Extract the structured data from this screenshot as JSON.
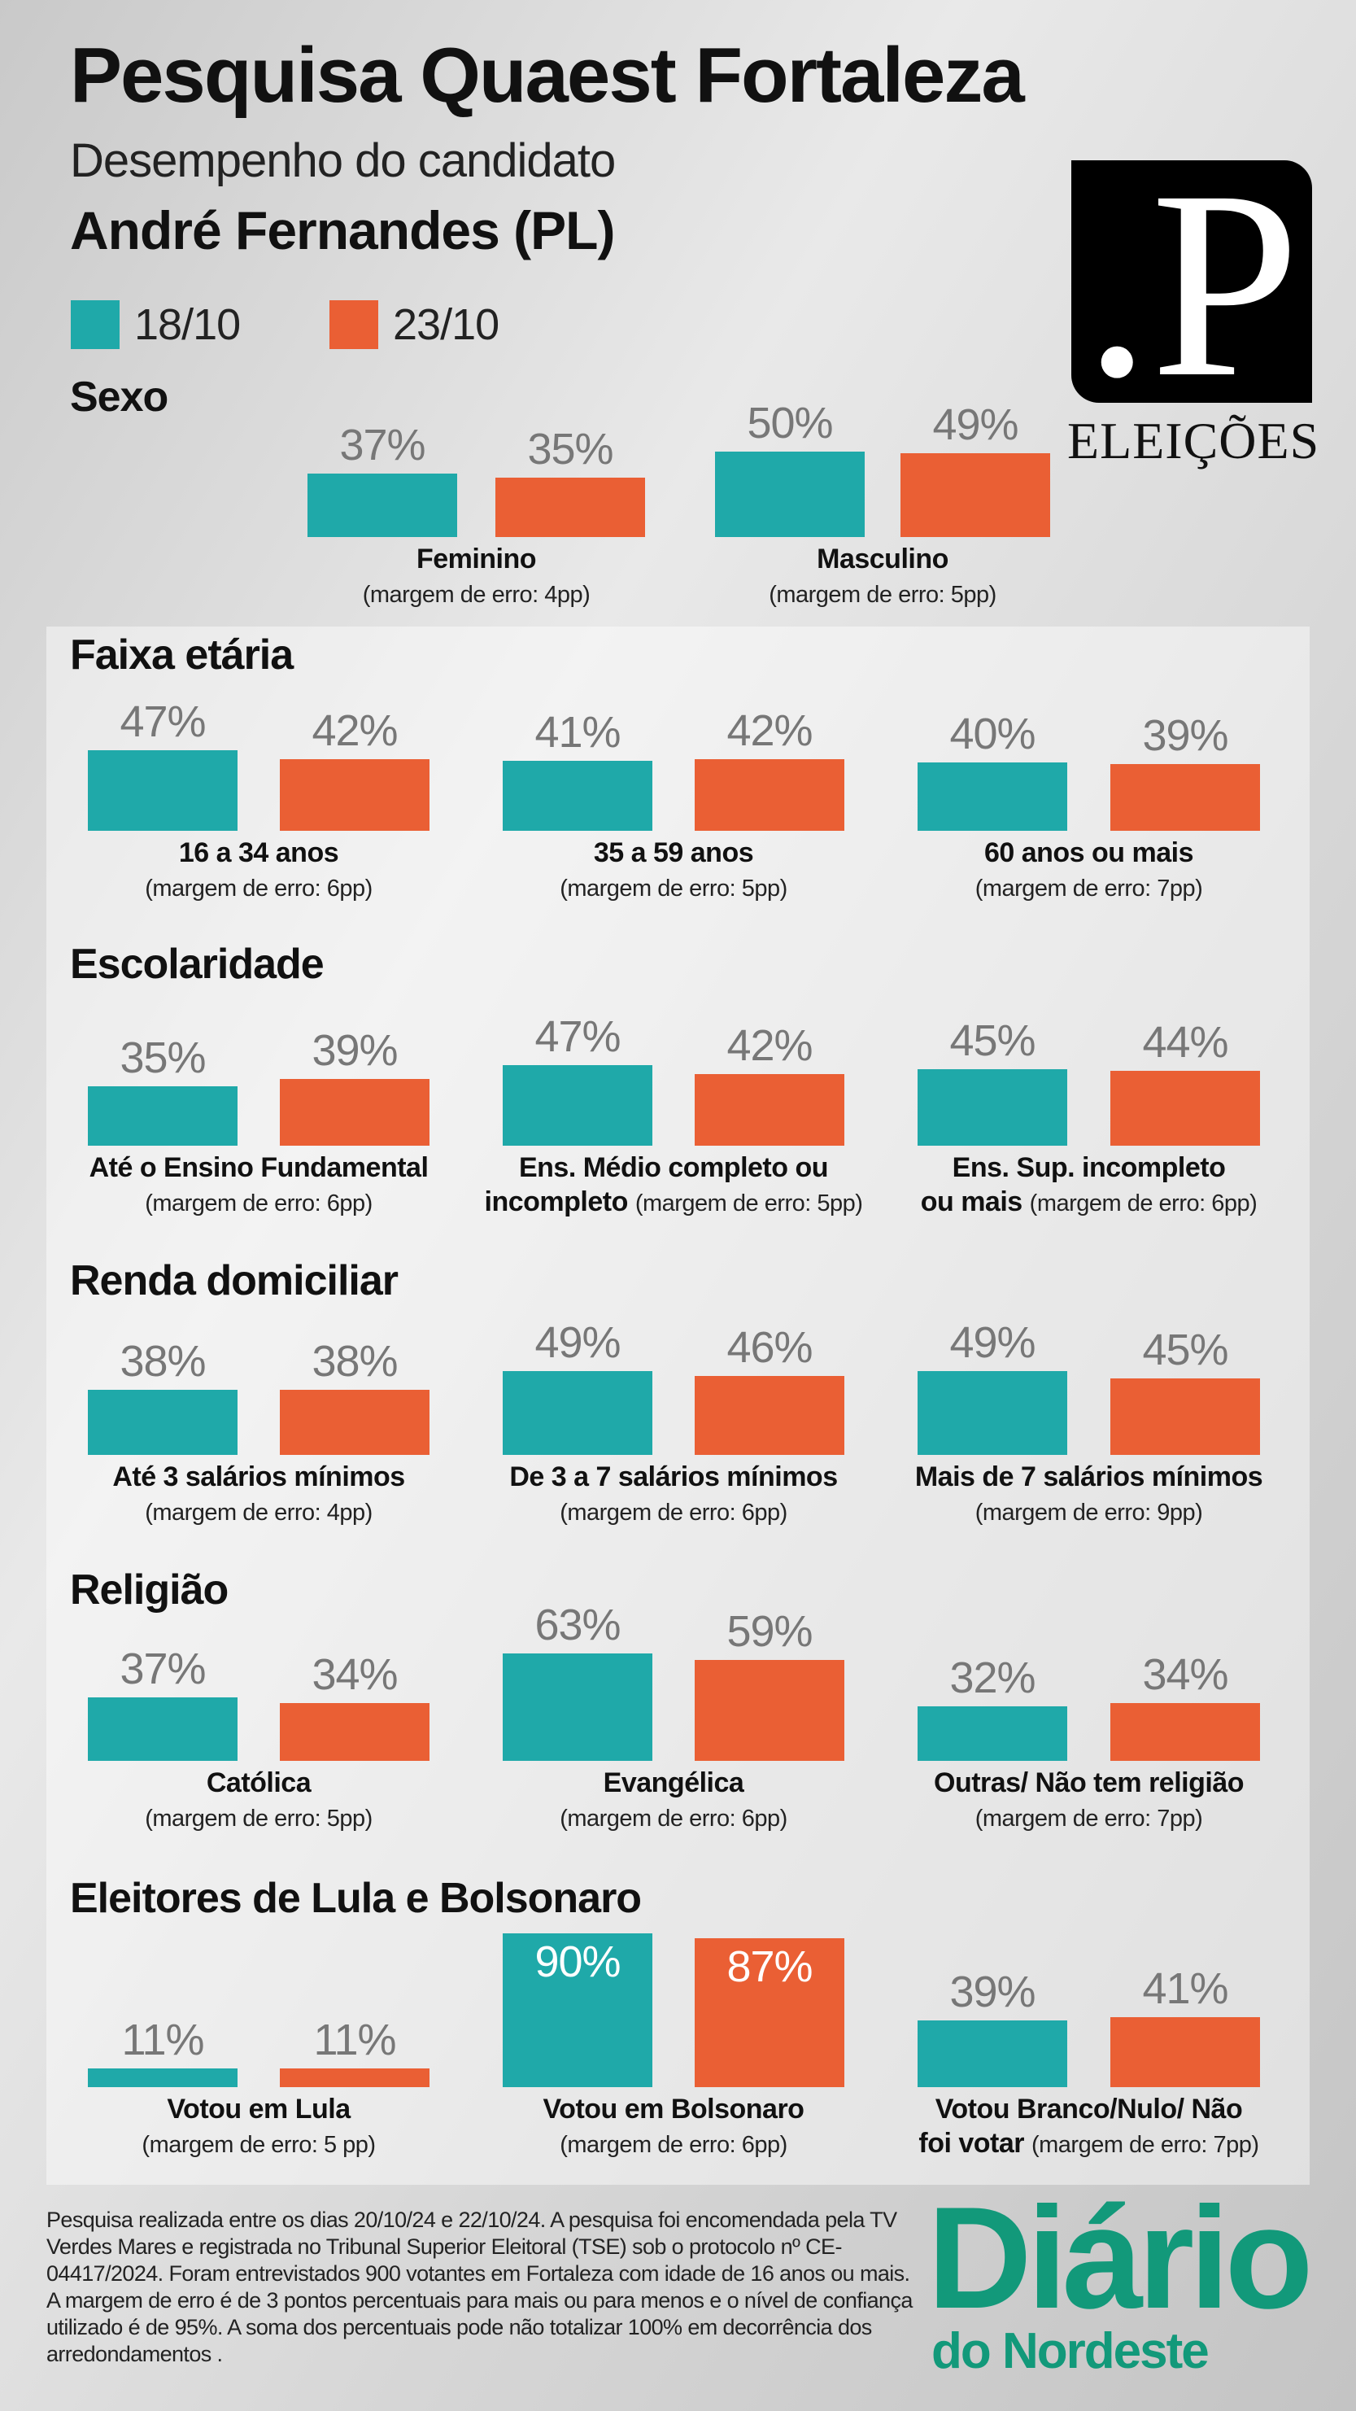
{
  "header": {
    "title": "Pesquisa Quaest Fortaleza",
    "subtitle": "Desempenho do candidato",
    "candidate": "André Fernandes (PL)"
  },
  "logo": {
    "mark": ".P",
    "label": "ELEIÇÕES"
  },
  "colors": {
    "series1": "#1fa9a9",
    "series2": "#ea5f34",
    "value_text": "#777777",
    "brand_green": "#12997a"
  },
  "chart_data": {
    "type": "bar",
    "unit": "%",
    "series": [
      {
        "name": "18/10"
      },
      {
        "name": "23/10"
      }
    ],
    "groups": [
      {
        "title": "Sexo",
        "categories": [
          {
            "label_lines": [
              "Feminino"
            ],
            "margin": "(margem de erro: 4pp)",
            "values": [
              37,
              35
            ]
          },
          {
            "label_lines": [
              "Masculino"
            ],
            "margin": "(margem de erro: 5pp)",
            "values": [
              50,
              49
            ]
          }
        ]
      },
      {
        "title": "Faixa etária",
        "categories": [
          {
            "label_lines": [
              "16 a 34 anos"
            ],
            "margin": "(margem de erro: 6pp)",
            "values": [
              47,
              42
            ]
          },
          {
            "label_lines": [
              "35 a 59 anos"
            ],
            "margin": "(margem de erro: 5pp)",
            "values": [
              41,
              42
            ]
          },
          {
            "label_lines": [
              "60 anos ou mais"
            ],
            "margin": "(margem de erro: 7pp)",
            "values": [
              40,
              39
            ]
          }
        ]
      },
      {
        "title": "Escolaridade",
        "categories": [
          {
            "label_lines": [
              "Até o Ensino Fundamental"
            ],
            "margin": "(margem de erro: 6pp)",
            "values": [
              35,
              39
            ]
          },
          {
            "label_lines": [
              "Ens. Médio completo ou",
              "incompleto"
            ],
            "margin": "(margem de erro: 5pp)",
            "values": [
              47,
              42
            ]
          },
          {
            "label_lines": [
              "Ens. Sup. incompleto",
              "ou mais"
            ],
            "margin": "(margem de erro: 6pp)",
            "values": [
              45,
              44
            ]
          }
        ]
      },
      {
        "title": "Renda domiciliar",
        "categories": [
          {
            "label_lines": [
              "Até 3 salários mínimos"
            ],
            "margin": "(margem de erro: 4pp)",
            "values": [
              38,
              38
            ]
          },
          {
            "label_lines": [
              "De 3 a 7 salários mínimos"
            ],
            "margin": "(margem de erro: 6pp)",
            "values": [
              49,
              46
            ]
          },
          {
            "label_lines": [
              "Mais de 7 salários mínimos"
            ],
            "margin": "(margem de erro: 9pp)",
            "values": [
              49,
              45
            ]
          }
        ]
      },
      {
        "title": "Religião",
        "categories": [
          {
            "label_lines": [
              "Católica"
            ],
            "margin": "(margem de erro: 5pp)",
            "values": [
              37,
              34
            ]
          },
          {
            "label_lines": [
              "Evangélica"
            ],
            "margin": "(margem de erro: 6pp)",
            "values": [
              63,
              59
            ]
          },
          {
            "label_lines": [
              "Outras/ Não tem religião"
            ],
            "margin": "(margem de erro: 7pp)",
            "values": [
              32,
              34
            ]
          }
        ]
      },
      {
        "title": "Eleitores de Lula e Bolsonaro",
        "categories": [
          {
            "label_lines": [
              "Votou em Lula"
            ],
            "margin": "(margem de erro: 5 pp)",
            "values": [
              11,
              11
            ]
          },
          {
            "label_lines": [
              "Votou em Bolsonaro"
            ],
            "margin": "(margem de erro: 6pp)",
            "values": [
              90,
              87
            ]
          },
          {
            "label_lines": [
              "Votou Branco/Nulo/ Não",
              "foi votar"
            ],
            "margin": "(margem de erro: 7pp)",
            "values": [
              39,
              41
            ]
          }
        ]
      }
    ]
  },
  "footer": {
    "note": "Pesquisa realizada entre os dias 20/10/24 e 22/10/24. A pesquisa foi encomendada pela TV Verdes Mares e registrada no Tribunal Superior Eleitoral (TSE) sob o protocolo nº CE-04417/2024. Foram entrevistados 900 votantes em Fortaleza com idade de 16 anos ou mais. A margem de erro é de 3 pontos percentuais para mais ou para menos e o nível de confiança utilizado é de 95%. A soma dos percentuais pode não totalizar 100% em decorrência dos arredondamentos .",
    "brand_line1": "Diário",
    "brand_line2": "do Nordeste"
  }
}
